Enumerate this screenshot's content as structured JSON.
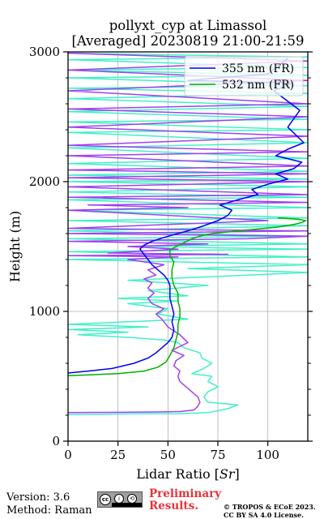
{
  "header": {
    "title_line1": "pollyxt_cyp at Limassol",
    "title_line2": "[Averaged] 20230819 21:00-21:59"
  },
  "footer": {
    "version": "Version: 3.6",
    "method": "Method: Raman",
    "preliminary_line1": "Preliminary",
    "preliminary_line2": "Results.",
    "copyright_line1": "© TROPOS & ECoE 2023.",
    "copyright_line2": "CC BY SA 4.0 License.",
    "license_badge": {
      "cc": "cc",
      "by": "i",
      "sa": "⟲"
    }
  },
  "colors": {
    "ch355": "#0000ee",
    "ch532": "#00b000",
    "purple": "#a040f0",
    "aqua": "#40f0c8",
    "grid": "#b0b0b0"
  },
  "chart_data": {
    "type": "line",
    "xlabel": "Lidar Ratio [Sr]",
    "xlabel_prefix": "Lidar Ratio [",
    "xlabel_unit": "Sr",
    "xlabel_suffix": "]",
    "ylabel": "Height (m)",
    "xlim": [
      0,
      120
    ],
    "ylim": [
      0,
      3000
    ],
    "xticks": [
      0,
      25,
      50,
      75,
      100
    ],
    "yticks": [
      0,
      1000,
      2000,
      3000
    ],
    "grid": true,
    "legend_position": "top-right",
    "series": [
      {
        "name": "355 nm (FR)",
        "color": "#0000ee",
        "points": [
          [
            0,
            525
          ],
          [
            10,
            540
          ],
          [
            22,
            560
          ],
          [
            33,
            600
          ],
          [
            40,
            640
          ],
          [
            44,
            680
          ],
          [
            47,
            720
          ],
          [
            50,
            760
          ],
          [
            52,
            800
          ],
          [
            53,
            860
          ],
          [
            52,
            920
          ],
          [
            53,
            980
          ],
          [
            52,
            1040
          ],
          [
            51,
            1100
          ],
          [
            51,
            1160
          ],
          [
            51,
            1200
          ],
          [
            50,
            1240
          ],
          [
            48,
            1280
          ],
          [
            45,
            1320
          ],
          [
            42,
            1360
          ],
          [
            40,
            1400
          ],
          [
            38,
            1440
          ],
          [
            36,
            1480
          ],
          [
            38,
            1510
          ],
          [
            42,
            1540
          ],
          [
            48,
            1570
          ],
          [
            55,
            1600
          ],
          [
            62,
            1630
          ],
          [
            68,
            1660
          ],
          [
            75,
            1700
          ],
          [
            80,
            1740
          ],
          [
            82,
            1780
          ],
          [
            76,
            1820
          ],
          [
            85,
            1860
          ],
          [
            95,
            1900
          ],
          [
            92,
            1940
          ],
          [
            100,
            1980
          ],
          [
            110,
            2020
          ],
          [
            104,
            2060
          ],
          [
            113,
            2100
          ],
          [
            117,
            2150
          ],
          [
            104,
            2200
          ],
          [
            110,
            2250
          ],
          [
            118,
            2300
          ],
          [
            110,
            2420
          ],
          [
            116,
            2550
          ],
          [
            103,
            2700
          ],
          [
            112,
            2760
          ],
          [
            60,
            2780
          ],
          [
            100,
            2830
          ],
          [
            110,
            2950
          ]
        ]
      },
      {
        "name": "532 nm (FR)",
        "color": "#00b000",
        "points": [
          [
            0,
            505
          ],
          [
            12,
            512
          ],
          [
            25,
            520
          ],
          [
            38,
            540
          ],
          [
            45,
            570
          ],
          [
            49,
            610
          ],
          [
            51,
            660
          ],
          [
            53,
            720
          ],
          [
            54,
            780
          ],
          [
            55,
            840
          ],
          [
            55,
            900
          ],
          [
            56,
            960
          ],
          [
            56,
            1020
          ],
          [
            55,
            1080
          ],
          [
            55,
            1140
          ],
          [
            53,
            1200
          ],
          [
            52,
            1260
          ],
          [
            52,
            1320
          ],
          [
            53,
            1380
          ],
          [
            51,
            1430
          ],
          [
            51,
            1470
          ],
          [
            54,
            1500
          ],
          [
            58,
            1530
          ],
          [
            62,
            1560
          ],
          [
            66,
            1580
          ],
          [
            72,
            1600
          ],
          [
            85,
            1620
          ],
          [
            105,
            1650
          ],
          [
            113,
            1670
          ],
          [
            117,
            1685
          ],
          [
            119,
            1700
          ],
          [
            115,
            1710
          ],
          [
            105,
            1720
          ]
        ]
      },
      {
        "name": "",
        "color": "#a040f0",
        "points": [
          [
            0,
            220
          ],
          [
            20,
            222
          ],
          [
            45,
            225
          ],
          [
            56,
            228
          ],
          [
            63,
            240
          ],
          [
            65,
            270
          ],
          [
            66,
            300
          ],
          [
            65,
            340
          ],
          [
            62,
            380
          ],
          [
            59,
            420
          ],
          [
            56,
            460
          ],
          [
            55,
            500
          ],
          [
            56,
            540
          ],
          [
            53,
            580
          ],
          [
            54,
            620
          ],
          [
            58,
            660
          ],
          [
            52,
            700
          ],
          [
            60,
            760
          ],
          [
            56,
            820
          ],
          [
            50,
            880
          ],
          [
            47,
            940
          ],
          [
            44,
            980
          ],
          [
            48,
            1020
          ],
          [
            42,
            1060
          ],
          [
            40,
            1100
          ],
          [
            43,
            1140
          ],
          [
            40,
            1180
          ],
          [
            42,
            1220
          ],
          [
            38,
            1250
          ],
          [
            44,
            1280
          ],
          [
            40,
            1320
          ],
          [
            48,
            1360
          ],
          [
            30,
            1400
          ],
          [
            55,
            1420
          ],
          [
            0,
            1430
          ],
          [
            80,
            1440
          ],
          [
            20,
            1450
          ],
          [
            55,
            1480
          ],
          [
            30,
            1500
          ],
          [
            70,
            1520
          ],
          [
            0,
            1540
          ],
          [
            90,
            1560
          ],
          [
            120,
            1580
          ],
          [
            0,
            1600
          ],
          [
            120,
            1620
          ],
          [
            0,
            1640
          ],
          [
            100,
            1700
          ],
          [
            0,
            1780
          ],
          [
            60,
            1800
          ],
          [
            10,
            1820
          ],
          [
            120,
            1840
          ],
          [
            0,
            1880
          ],
          [
            120,
            1900
          ],
          [
            0,
            1960
          ],
          [
            120,
            2000
          ],
          [
            0,
            2030
          ],
          [
            120,
            2060
          ],
          [
            0,
            2090
          ],
          [
            120,
            2120
          ],
          [
            0,
            2200
          ],
          [
            120,
            2230
          ],
          [
            0,
            2280
          ],
          [
            120,
            2350
          ],
          [
            0,
            2420
          ],
          [
            120,
            2500
          ],
          [
            0,
            2560
          ],
          [
            120,
            2600
          ],
          [
            0,
            2700
          ],
          [
            120,
            2780
          ],
          [
            0,
            2860
          ],
          [
            120,
            2930
          ],
          [
            0,
            2990
          ]
        ]
      },
      {
        "name": "",
        "color": "#40f0c8",
        "points": [
          [
            0,
            205
          ],
          [
            30,
            210
          ],
          [
            55,
            212
          ],
          [
            70,
            220
          ],
          [
            80,
            250
          ],
          [
            85,
            280
          ],
          [
            70,
            300
          ],
          [
            68,
            340
          ],
          [
            70,
            380
          ],
          [
            75,
            420
          ],
          [
            70,
            460
          ],
          [
            72,
            500
          ],
          [
            62,
            520
          ],
          [
            68,
            560
          ],
          [
            72,
            600
          ],
          [
            67,
            640
          ],
          [
            66,
            680
          ],
          [
            58,
            720
          ],
          [
            55,
            760
          ],
          [
            48,
            780
          ],
          [
            30,
            800
          ],
          [
            5,
            820
          ],
          [
            30,
            840
          ],
          [
            0,
            860
          ],
          [
            40,
            880
          ],
          [
            0,
            900
          ],
          [
            60,
            940
          ],
          [
            45,
            980
          ],
          [
            50,
            1020
          ],
          [
            30,
            1060
          ],
          [
            55,
            1080
          ],
          [
            25,
            1100
          ],
          [
            60,
            1120
          ],
          [
            40,
            1160
          ],
          [
            70,
            1200
          ],
          [
            30,
            1240
          ],
          [
            120,
            1300
          ],
          [
            60,
            1330
          ],
          [
            120,
            1360
          ],
          [
            0,
            1400
          ],
          [
            120,
            1420
          ],
          [
            0,
            1460
          ],
          [
            120,
            1480
          ],
          [
            30,
            1500
          ],
          [
            120,
            1520
          ],
          [
            0,
            1560
          ],
          [
            120,
            1580
          ],
          [
            0,
            1620
          ],
          [
            120,
            1660
          ],
          [
            0,
            1700
          ],
          [
            120,
            1720
          ],
          [
            0,
            1780
          ],
          [
            120,
            1800
          ],
          [
            0,
            1860
          ],
          [
            120,
            1880
          ],
          [
            0,
            1920
          ],
          [
            120,
            1960
          ],
          [
            0,
            2000
          ],
          [
            120,
            2020
          ],
          [
            0,
            2050
          ],
          [
            120,
            2080
          ],
          [
            0,
            2140
          ],
          [
            120,
            2180
          ],
          [
            0,
            2260
          ],
          [
            120,
            2300
          ],
          [
            0,
            2380
          ],
          [
            120,
            2400
          ],
          [
            0,
            2460
          ],
          [
            120,
            2480
          ],
          [
            0,
            2540
          ],
          [
            120,
            2580
          ],
          [
            0,
            2640
          ],
          [
            120,
            2680
          ],
          [
            0,
            2720
          ],
          [
            120,
            2740
          ],
          [
            0,
            2800
          ],
          [
            120,
            2820
          ],
          [
            0,
            2860
          ],
          [
            120,
            2880
          ],
          [
            0,
            2940
          ],
          [
            120,
            2960
          ],
          [
            0,
            2990
          ]
        ]
      }
    ]
  }
}
